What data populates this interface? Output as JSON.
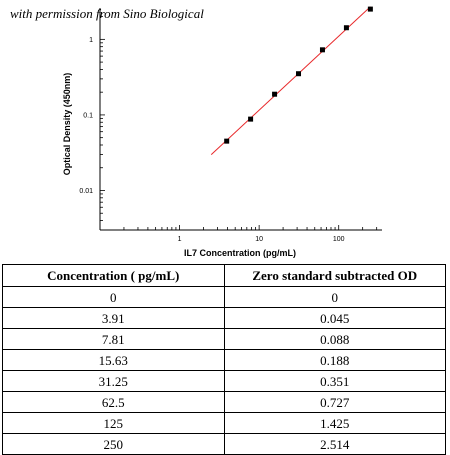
{
  "caption": "with permission from Sino Biological",
  "chart_data": {
    "type": "scatter",
    "xlabel": "IL7 Concentration (pg/mL)",
    "ylabel": "Optical Density (450nm)",
    "x_scale": "log",
    "y_scale": "log",
    "xlim": [
      0.1,
      350
    ],
    "ylim": [
      0.003,
      2.6
    ],
    "x_tick_labels": [
      "1",
      "10",
      "100"
    ],
    "y_tick_labels": [
      "0.01",
      "0.1",
      "1"
    ],
    "grid": false,
    "series": [
      {
        "x": [
          3.91,
          7.81,
          15.63,
          31.25,
          62.5,
          125,
          250
        ],
        "y": [
          0.045,
          0.088,
          0.188,
          0.351,
          0.727,
          1.425,
          2.514
        ],
        "color": "#000000"
      }
    ],
    "fit_line": {
      "x": [
        2.5,
        250
      ],
      "color": "#e8292b"
    }
  },
  "table": {
    "headers": [
      "Concentration ( pg/mL)",
      "Zero standard subtracted OD"
    ],
    "rows": [
      [
        "0",
        "0"
      ],
      [
        "3.91",
        "0.045"
      ],
      [
        "7.81",
        "0.088"
      ],
      [
        "15.63",
        "0.188"
      ],
      [
        "31.25",
        "0.351"
      ],
      [
        "62.5",
        "0.727"
      ],
      [
        "125",
        "1.425"
      ],
      [
        "250",
        "2.514"
      ]
    ]
  }
}
